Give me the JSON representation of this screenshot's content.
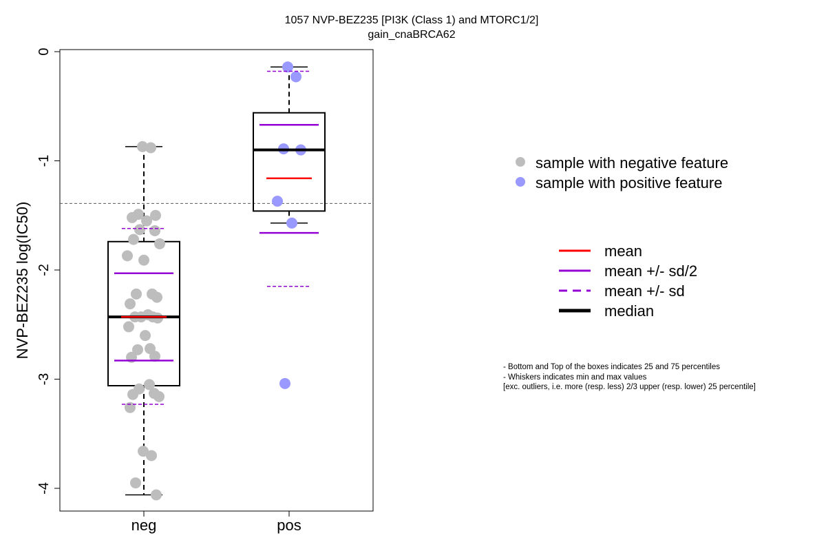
{
  "chart_data": {
    "type": "box",
    "title": "1057 NVP-BEZ235 [PI3K (Class 1) and MTORC1/2]",
    "subtitle": "gain_cnaBRCA62",
    "ylabel": "NVP-BEZ235 log(IC50)",
    "xlabel": "",
    "ylim": [
      -4.2,
      0.03
    ],
    "yticks": [
      0,
      -1,
      -2,
      -3,
      -4
    ],
    "ytick_labels": [
      "0",
      "-1",
      "-2",
      "-3",
      "-4"
    ],
    "categories": [
      "neg",
      "pos"
    ],
    "reference_line": -1.39,
    "groups": [
      {
        "name": "neg",
        "color": "#bdbdbd",
        "q1": -3.06,
        "median": -2.43,
        "q3": -1.74,
        "whisker_low": -4.06,
        "whisker_high": -0.87,
        "mean": -2.43,
        "mean_minus_half_sd": -2.83,
        "mean_plus_half_sd": -2.03,
        "mean_minus_sd": -3.23,
        "mean_plus_sd": -1.62,
        "points": [
          -0.87,
          -0.88,
          -1.49,
          -1.5,
          -1.52,
          -1.55,
          -1.63,
          -1.64,
          -1.72,
          -1.76,
          -1.87,
          -1.91,
          -2.22,
          -2.22,
          -2.25,
          -2.31,
          -2.41,
          -2.43,
          -2.43,
          -2.43,
          -2.44,
          -2.52,
          -2.6,
          -2.72,
          -2.73,
          -2.79,
          -2.8,
          -3.05,
          -3.09,
          -3.13,
          -3.14,
          -3.16,
          -3.26,
          -3.66,
          -3.7,
          -3.95,
          -4.06
        ]
      },
      {
        "name": "pos",
        "color": "#9999ff",
        "q1": -1.46,
        "median": -0.9,
        "q3": -0.56,
        "whisker_low": -1.57,
        "whisker_high": -0.14,
        "mean": -1.16,
        "mean_minus_half_sd": -1.66,
        "mean_plus_half_sd": -0.67,
        "mean_minus_sd": -2.15,
        "mean_plus_sd": -0.18,
        "points": [
          -0.14,
          -0.23,
          -0.89,
          -0.9,
          -1.37,
          -1.57,
          -3.04
        ]
      }
    ],
    "legend_points": [
      {
        "label": "sample with negative feature",
        "color": "#bdbdbd"
      },
      {
        "label": "sample with positive feature",
        "color": "#9999ff"
      }
    ],
    "legend_lines": [
      {
        "label": "mean",
        "color": "#ff0000",
        "style": "solid"
      },
      {
        "label": "mean +/- sd/2",
        "color": "#9400d3",
        "style": "solid"
      },
      {
        "label": "mean +/- sd",
        "color": "#9400d3",
        "style": "dashed"
      },
      {
        "label": "median",
        "color": "#000000",
        "style": "thick"
      }
    ],
    "notes": [
      "- Bottom and Top of the boxes indicates 25 and 75 percentiles",
      "- Whiskers indicates min and max values",
      "[exc. outliers, i.e. more (resp. less) 2/3 upper (resp. lower) 25 percentile]"
    ]
  }
}
